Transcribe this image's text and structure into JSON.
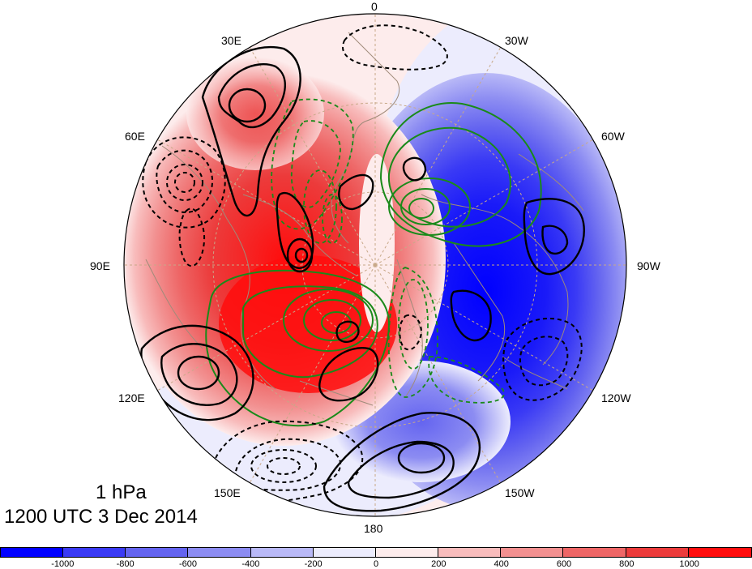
{
  "map": {
    "projection": "north-polar-stereographic",
    "longitude_labels": [
      "0",
      "30W",
      "60W",
      "90W",
      "120W",
      "150W",
      "180",
      "150E",
      "120E",
      "90E",
      "60E",
      "30E"
    ]
  },
  "caption": {
    "level": "1 hPa",
    "time": "1200 UTC 3 Dec 2014"
  },
  "colorbar": {
    "colors": [
      "#0000ff",
      "#3a3af5",
      "#6464f0",
      "#8c8cf2",
      "#b9b9f7",
      "#ececfd",
      "#fdecec",
      "#f8bcbc",
      "#f29090",
      "#ee6666",
      "#ec3b3b",
      "#ff0d0d"
    ],
    "tick_labels": [
      "-1000",
      "-800",
      "-600",
      "-400",
      "-200",
      "0",
      "200",
      "400",
      "600",
      "800",
      "1000"
    ]
  },
  "colors": {
    "positive_contour": "#000000",
    "negative_contour": "#000000",
    "green_contour": "#1a8a1a",
    "graticule": "#c8a888",
    "coastline": "#a08b7a"
  }
}
